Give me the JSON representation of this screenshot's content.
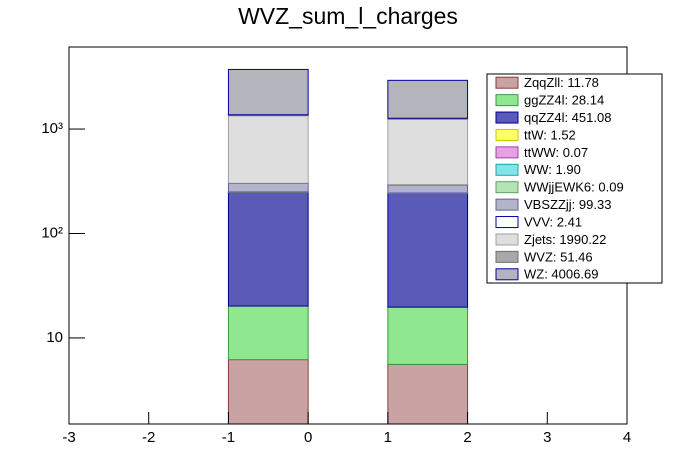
{
  "chart_data": {
    "type": "stacked_histogram",
    "title": "WVZ_sum_l_charges",
    "bins": [
      -1,
      0,
      1,
      2
    ],
    "series": [
      {
        "name": "ZqqZll: 11.78",
        "color": "#c9a3a3",
        "edge": "#8b3a3a",
        "values": [
          6.2,
          0,
          5.58
        ]
      },
      {
        "name": "ggZZ4l: 28.14",
        "color": "#8fe88f",
        "edge": "#3c9a3c",
        "values": [
          14.0,
          0,
          14.14
        ]
      },
      {
        "name": "qqZZ4l: 451.08",
        "color": "#5a5ab8",
        "edge": "#0000a0",
        "values": [
          228,
          0,
          223.08
        ]
      },
      {
        "name": "ttW: 1.52",
        "color": "#ffff66",
        "edge": "#c8c800",
        "values": [
          0.8,
          0,
          0.72
        ]
      },
      {
        "name": "ttWW: 0.07",
        "color": "#e6a0e6",
        "edge": "#a040a0",
        "values": [
          0.04,
          0,
          0.03
        ]
      },
      {
        "name": "WW: 1.90",
        "color": "#80e4e8",
        "edge": "#20a0a8",
        "values": [
          1.0,
          0,
          0.9
        ]
      },
      {
        "name": "WWjjEWK6: 0.09",
        "color": "#b4e4b4",
        "edge": "#60a060",
        "values": [
          0.05,
          0,
          0.04
        ]
      },
      {
        "name": "VBSZZjj: 99.33",
        "color": "#b4b4c8",
        "edge": "#6060a0",
        "values": [
          51,
          0,
          48.33
        ]
      },
      {
        "name": "VVV: 2.41",
        "color": "#ffffff",
        "edge": "#0000a0",
        "values": [
          1.3,
          0,
          1.11
        ]
      },
      {
        "name": "Zjets: 1990.22",
        "color": "#dedede",
        "edge": "#a0a0a0",
        "values": [
          1040,
          0,
          950.22
        ]
      },
      {
        "name": "WVZ: 51.46",
        "color": "#a8a8a8",
        "edge": "#707070",
        "values": [
          27,
          0,
          24.46
        ]
      },
      {
        "name": "WZ: 4006.69",
        "color": "#b4b4bc",
        "edge": "#0000a0",
        "values": [
          2350,
          0,
          1656.69
        ]
      }
    ],
    "xlim": [
      -3,
      4
    ],
    "xticks": [
      -3,
      -2,
      -1,
      0,
      1,
      2,
      3,
      4
    ],
    "ylim": [
      1.5,
      6100
    ],
    "log_y": true,
    "yticks": [
      10,
      {
        "value": 100,
        "label": "10²"
      },
      {
        "value": 1000,
        "label": "10³"
      }
    ]
  }
}
